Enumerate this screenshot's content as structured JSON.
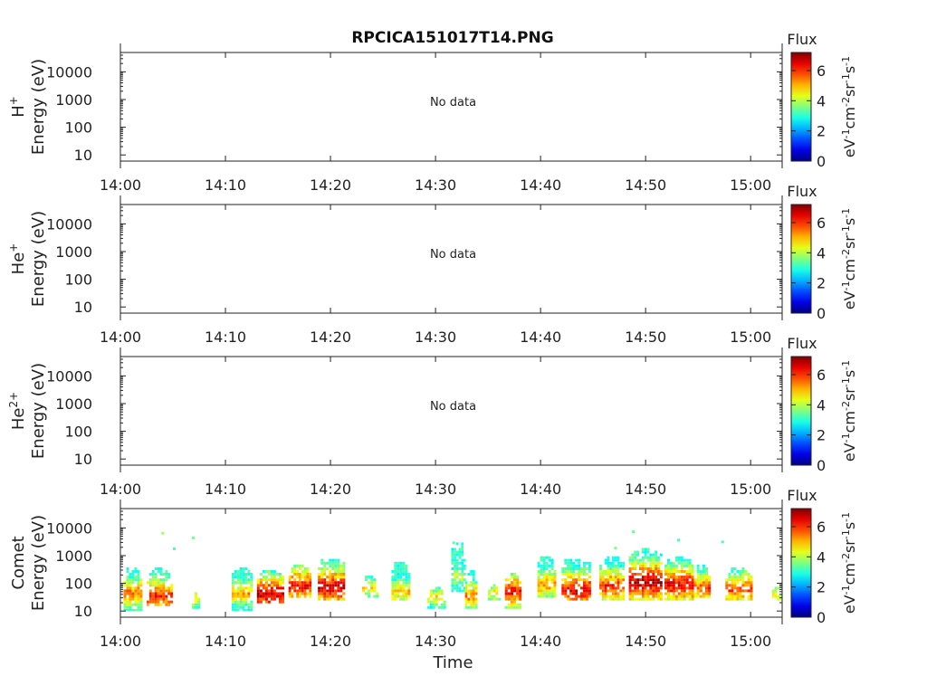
{
  "figure": {
    "title": "RPCICA151017T14.PNG"
  },
  "chart_data": [
    {
      "type": "heatmap",
      "panel": "H+",
      "ylabel_species": "H",
      "ylabel_sup": "+",
      "ylabel_unit": "Energy (eV)",
      "yscale": "log",
      "ylim": [
        6,
        50000
      ],
      "yticks": [
        10,
        100,
        1000,
        10000
      ],
      "ytick_labels": [
        "10",
        "100",
        "1000",
        "10000"
      ],
      "xlim": [
        "14:00",
        "15:03"
      ],
      "xtick_labels": [
        "14:00",
        "14:10",
        "14:20",
        "14:30",
        "14:40",
        "14:50",
        "15:00"
      ],
      "status": "No data",
      "colorbar": {
        "label": "Flux",
        "unit": "eV-1cm-2sr-1s-1",
        "unit_base": [
          "eV",
          "cm",
          "sr",
          "s"
        ],
        "unit_exp": [
          "-1",
          "-2",
          "-1",
          "-1"
        ],
        "range": [
          0,
          7.2
        ],
        "ticks": [
          "0",
          "2",
          "4",
          "6"
        ]
      },
      "cells": []
    },
    {
      "type": "heatmap",
      "panel": "He+",
      "ylabel_species": "He",
      "ylabel_sup": "+",
      "ylabel_unit": "Energy (eV)",
      "yscale": "log",
      "ylim": [
        6,
        50000
      ],
      "yticks": [
        10,
        100,
        1000,
        10000
      ],
      "ytick_labels": [
        "10",
        "100",
        "1000",
        "10000"
      ],
      "xlim": [
        "14:00",
        "15:03"
      ],
      "xtick_labels": [
        "14:00",
        "14:10",
        "14:20",
        "14:30",
        "14:40",
        "14:50",
        "15:00"
      ],
      "status": "No data",
      "colorbar": {
        "label": "Flux",
        "unit": "eV-1cm-2sr-1s-1",
        "unit_base": [
          "eV",
          "cm",
          "sr",
          "s"
        ],
        "unit_exp": [
          "-1",
          "-2",
          "-1",
          "-1"
        ],
        "range": [
          0,
          7.2
        ],
        "ticks": [
          "0",
          "2",
          "4",
          "6"
        ]
      },
      "cells": []
    },
    {
      "type": "heatmap",
      "panel": "He2+",
      "ylabel_species": "He",
      "ylabel_sup": "2+",
      "ylabel_unit": "Energy (eV)",
      "yscale": "log",
      "ylim": [
        6,
        50000
      ],
      "yticks": [
        10,
        100,
        1000,
        10000
      ],
      "ytick_labels": [
        "10",
        "100",
        "1000",
        "10000"
      ],
      "xlim": [
        "14:00",
        "15:03"
      ],
      "xtick_labels": [
        "14:00",
        "14:10",
        "14:20",
        "14:30",
        "14:40",
        "14:50",
        "15:00"
      ],
      "status": "No data",
      "colorbar": {
        "label": "Flux",
        "unit": "eV-1cm-2sr-1s-1",
        "unit_base": [
          "eV",
          "cm",
          "sr",
          "s"
        ],
        "unit_exp": [
          "-1",
          "-2",
          "-1",
          "-1"
        ],
        "range": [
          0,
          7.2
        ],
        "ticks": [
          "0",
          "2",
          "4",
          "6"
        ]
      },
      "cells": []
    },
    {
      "type": "heatmap",
      "panel": "Comet",
      "ylabel_species": "Comet",
      "ylabel_sup": "",
      "ylabel_unit": "Energy (eV)",
      "xlabel": "Time",
      "yscale": "log",
      "ylim": [
        6,
        50000
      ],
      "yticks": [
        10,
        100,
        1000,
        10000
      ],
      "ytick_labels": [
        "10",
        "100",
        "1000",
        "10000"
      ],
      "xlim": [
        "14:00",
        "15:03"
      ],
      "xtick_labels": [
        "14:00",
        "14:10",
        "14:20",
        "14:30",
        "14:40",
        "14:50",
        "15:00"
      ],
      "status": "",
      "colorbar": {
        "label": "Flux",
        "unit": "eV-1cm-2sr-1s-1",
        "unit_base": [
          "eV",
          "cm",
          "sr",
          "s"
        ],
        "unit_exp": [
          "-1",
          "-2",
          "-1",
          "-1"
        ],
        "range": [
          0,
          7.2
        ],
        "ticks": [
          "0",
          "2",
          "4",
          "6"
        ]
      },
      "cell_width_min": 0.25,
      "energy_bins_eV": [
        10,
        12,
        15,
        19,
        24,
        30,
        38,
        48,
        60,
        75,
        95,
        120,
        150,
        190,
        240,
        300,
        380,
        480,
        600,
        760,
        950,
        1200,
        1500,
        1900,
        2400,
        3000
      ],
      "bursts": [
        {
          "t": 0.3,
          "w": 1.8,
          "emin": 10,
          "emax": 350,
          "peak": 5.6,
          "ridge": 40
        },
        {
          "t": 2.5,
          "w": 2.5,
          "emin": 15,
          "emax": 300,
          "peak": 6.2,
          "ridge": 30
        },
        {
          "t": 6.8,
          "w": 0.8,
          "emin": 12,
          "emax": 40,
          "peak": 4.5,
          "ridge": 25
        },
        {
          "t": 10.6,
          "w": 2.0,
          "emin": 10,
          "emax": 300,
          "peak": 5.2,
          "ridge": 40
        },
        {
          "t": 13.0,
          "w": 2.6,
          "emin": 18,
          "emax": 250,
          "peak": 6.8,
          "ridge": 35
        },
        {
          "t": 16.0,
          "w": 2.2,
          "emin": 25,
          "emax": 400,
          "peak": 6.4,
          "ridge": 70
        },
        {
          "t": 18.8,
          "w": 2.6,
          "emin": 20,
          "emax": 700,
          "peak": 6.7,
          "ridge": 65
        },
        {
          "t": 23.0,
          "w": 1.6,
          "emin": 25,
          "emax": 150,
          "peak": 4.8,
          "ridge": 60
        },
        {
          "t": 25.8,
          "w": 1.8,
          "emin": 20,
          "emax": 500,
          "peak": 5.0,
          "ridge": 45
        },
        {
          "t": 29.2,
          "w": 1.8,
          "emin": 12,
          "emax": 60,
          "peak": 4.6,
          "ridge": 30
        },
        {
          "t": 31.5,
          "w": 1.4,
          "emin": 40,
          "emax": 2500,
          "peak": 4.2,
          "ridge": 150
        },
        {
          "t": 32.8,
          "w": 1.2,
          "emin": 12,
          "emax": 250,
          "peak": 5.5,
          "ridge": 30
        },
        {
          "t": 35.0,
          "w": 1.2,
          "emin": 20,
          "emax": 80,
          "peak": 4.6,
          "ridge": 40
        },
        {
          "t": 36.6,
          "w": 1.6,
          "emin": 12,
          "emax": 200,
          "peak": 6.4,
          "ridge": 45
        },
        {
          "t": 39.7,
          "w": 1.8,
          "emin": 25,
          "emax": 800,
          "peak": 5.4,
          "ridge": 80
        },
        {
          "t": 42.0,
          "w": 2.8,
          "emin": 20,
          "emax": 700,
          "peak": 6.6,
          "ridge": 50
        },
        {
          "t": 45.6,
          "w": 2.4,
          "emin": 20,
          "emax": 800,
          "peak": 6.2,
          "ridge": 70
        },
        {
          "t": 48.4,
          "w": 3.2,
          "emin": 20,
          "emax": 1500,
          "peak": 7.0,
          "ridge": 100
        },
        {
          "t": 51.8,
          "w": 2.8,
          "emin": 20,
          "emax": 800,
          "peak": 6.6,
          "ridge": 80
        },
        {
          "t": 54.6,
          "w": 1.6,
          "emin": 30,
          "emax": 400,
          "peak": 5.8,
          "ridge": 60
        },
        {
          "t": 57.6,
          "w": 2.6,
          "emin": 20,
          "emax": 300,
          "peak": 6.0,
          "ridge": 55
        },
        {
          "t": 61.8,
          "w": 1.2,
          "emin": 20,
          "emax": 60,
          "peak": 4.4,
          "ridge": 35
        }
      ],
      "sparse_points": [
        {
          "t": 3.9,
          "energy": 6200,
          "value": 3.8
        },
        {
          "t": 5.0,
          "energy": 1700,
          "value": 3.2
        },
        {
          "t": 6.8,
          "energy": 4200,
          "value": 3.5
        },
        {
          "t": 31.6,
          "energy": 2800,
          "value": 3.4
        },
        {
          "t": 47.0,
          "energy": 1800,
          "value": 3.6
        },
        {
          "t": 48.7,
          "energy": 7000,
          "value": 3.4
        },
        {
          "t": 53.0,
          "energy": 3500,
          "value": 3.2
        },
        {
          "t": 57.2,
          "energy": 3000,
          "value": 3.2
        }
      ]
    }
  ]
}
